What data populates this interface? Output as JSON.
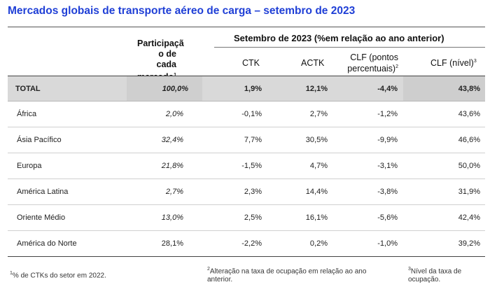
{
  "title": "Mercados globais de transporte aéreo de carga – setembro de 2023",
  "header": {
    "share_label_1": "Participaçã",
    "share_label_2": "o de cada",
    "share_label_3": "mercado",
    "share_sup": "1",
    "group_label": "Setembro de 2023 (%em relação ao ano anterior)",
    "col_ctk": "CTK",
    "col_actk": "ACTK",
    "col_clfpp_1": "CLF (pontos",
    "col_clfpp_2": "percentuais)",
    "col_clfpp_sup": "2",
    "col_clf": "CLF (nível)",
    "col_clf_sup": "3"
  },
  "rows": [
    {
      "name": "TOTAL",
      "share": "100,0%",
      "ctk": "1,9%",
      "actk": "12,1%",
      "clfpp": "-4,4%",
      "clf": "43,8%"
    },
    {
      "name": "África",
      "share": "2,0%",
      "ctk": "-0,1%",
      "actk": "2,7%",
      "clfpp": "-1,2%",
      "clf": "43,6%"
    },
    {
      "name": "Ásia Pacífico",
      "share": "32,4%",
      "ctk": "7,7%",
      "actk": "30,5%",
      "clfpp": "-9,9%",
      "clf": "46,6%"
    },
    {
      "name": "Europa",
      "share": "21,8%",
      "ctk": "-1,5%",
      "actk": "4,7%",
      "clfpp": "-3,1%",
      "clf": "50,0%"
    },
    {
      "name": "América Latina",
      "share": "2,7%",
      "ctk": "2,3%",
      "actk": "14,4%",
      "clfpp": "-3,8%",
      "clf": "31,9%"
    },
    {
      "name": "Oriente Médio",
      "share": "13,0%",
      "ctk": "2,5%",
      "actk": "16,1%",
      "clfpp": "-5,6%",
      "clf": "42,4%"
    },
    {
      "name": "América do Norte",
      "share": "28,1%",
      "ctk": "-2,2%",
      "actk": "0,2%",
      "clfpp": "-1,0%",
      "clf": "39,2%"
    }
  ],
  "footnotes": {
    "f1_sup": "1",
    "f1": "% de CTKs do setor em 2022.",
    "f2_sup": "2",
    "f2_line1": "Alteração na taxa de ocupação em relação ao ano",
    "f2_line2": "anterior.",
    "f3_sup": "3",
    "f3_line1": "Nível da taxa de",
    "f3_line2": "ocupação."
  }
}
